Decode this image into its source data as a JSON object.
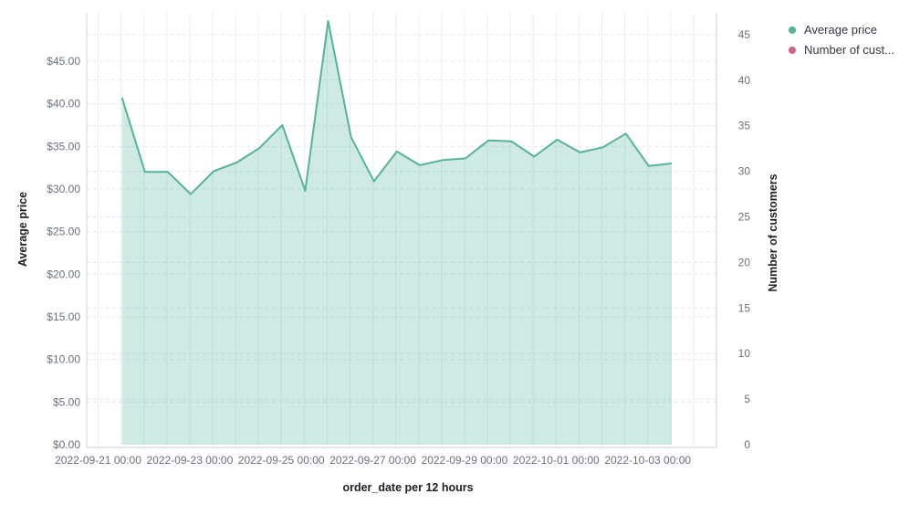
{
  "legend": {
    "items": [
      {
        "label": "Average price",
        "color": "#54B399"
      },
      {
        "label": "Number of cust...",
        "color": "#D36086"
      }
    ]
  },
  "axes": {
    "left": {
      "title": "Average price",
      "tick_labels": [
        "$0.00",
        "$5.00",
        "$10.00",
        "$15.00",
        "$20.00",
        "$25.00",
        "$30.00",
        "$35.00",
        "$40.00",
        "$45.00"
      ]
    },
    "right": {
      "title": "Number of customers",
      "tick_labels": [
        "0",
        "5",
        "10",
        "15",
        "20",
        "25",
        "30",
        "35",
        "40",
        "45"
      ]
    },
    "bottom": {
      "title": "order_date per 12 hours",
      "tick_labels": [
        "2022-09-21 00:00",
        "2022-09-23 00:00",
        "2022-09-25 00:00",
        "2022-09-27 00:00",
        "2022-09-29 00:00",
        "2022-10-01 00:00",
        "2022-10-03 00:00"
      ]
    }
  },
  "chart_data": {
    "type": "area",
    "title": "",
    "xlabel": "order_date per 12 hours",
    "ylabel_left": "Average price",
    "ylabel_right": "Number of customers",
    "ylim_left": [
      0,
      50
    ],
    "ylim_right": [
      0,
      45
    ],
    "grid": true,
    "legend_position": "top-right",
    "x_interval": "12 hours",
    "x": [
      "2022-09-21 00:00",
      "2022-09-21 12:00",
      "2022-09-22 00:00",
      "2022-09-22 12:00",
      "2022-09-23 00:00",
      "2022-09-23 12:00",
      "2022-09-24 00:00",
      "2022-09-24 12:00",
      "2022-09-25 00:00",
      "2022-09-25 12:00",
      "2022-09-26 00:00",
      "2022-09-26 12:00",
      "2022-09-27 00:00",
      "2022-09-27 12:00",
      "2022-09-28 00:00",
      "2022-09-28 12:00",
      "2022-09-29 00:00",
      "2022-09-29 12:00",
      "2022-09-30 00:00",
      "2022-09-30 12:00",
      "2022-10-01 00:00",
      "2022-10-01 12:00",
      "2022-10-02 00:00",
      "2022-10-02 12:00",
      "2022-10-03 00:00"
    ],
    "series": [
      {
        "name": "Average price",
        "axis": "left",
        "color": "#54B399",
        "fill_opacity": 0.28,
        "values": [
          40.7,
          32.0,
          32.0,
          29.4,
          32.1,
          33.1,
          34.8,
          37.5,
          29.8,
          49.7,
          36.1,
          30.9,
          34.4,
          32.8,
          33.4,
          33.6,
          35.7,
          35.6,
          33.8,
          35.8,
          34.3,
          34.9,
          36.5,
          32.7,
          33.0
        ]
      },
      {
        "name": "Number of customers",
        "axis": "right",
        "color": "#D36086",
        "values": []
      }
    ]
  },
  "style": {
    "tick_label_color": "#69707D",
    "axis_line_color": "#CBD2DC",
    "v_grid_color": "#EAEDF2",
    "h_grid_color": "#E4E8EE"
  }
}
